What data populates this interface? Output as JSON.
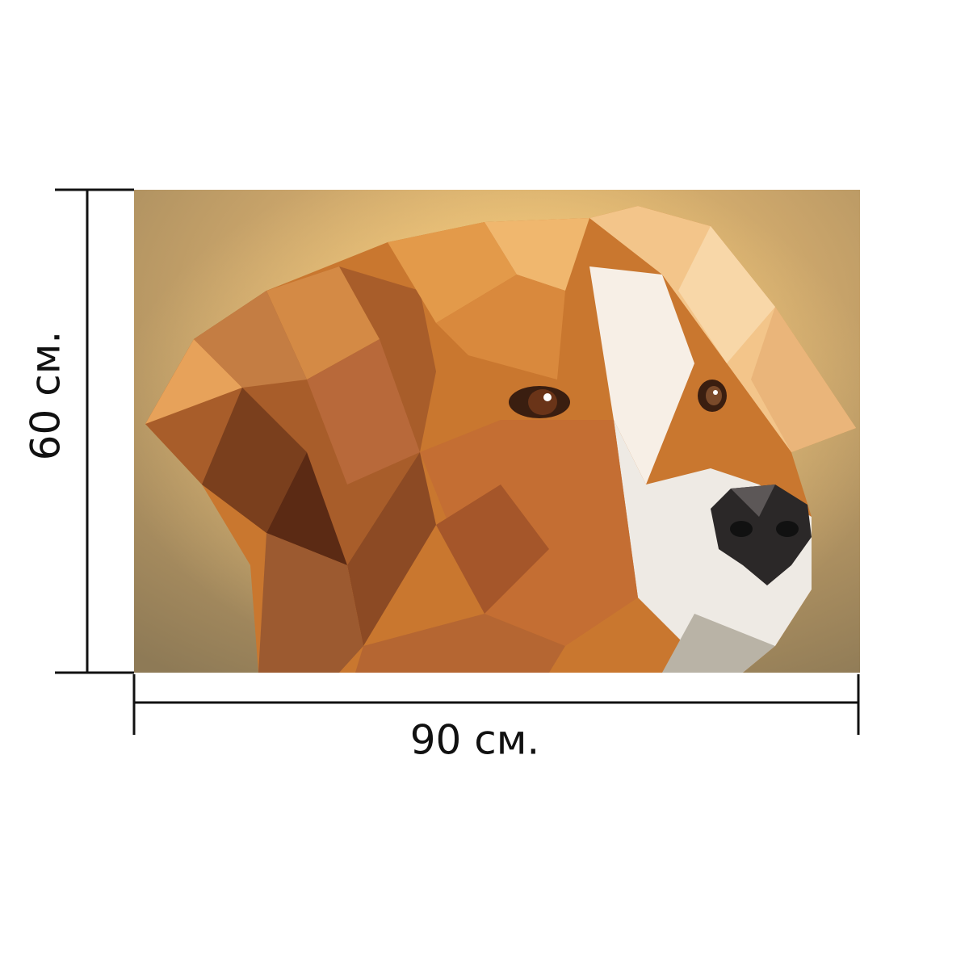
{
  "dimensions": {
    "height_label": "60 см.",
    "width_label": "90 см."
  }
}
